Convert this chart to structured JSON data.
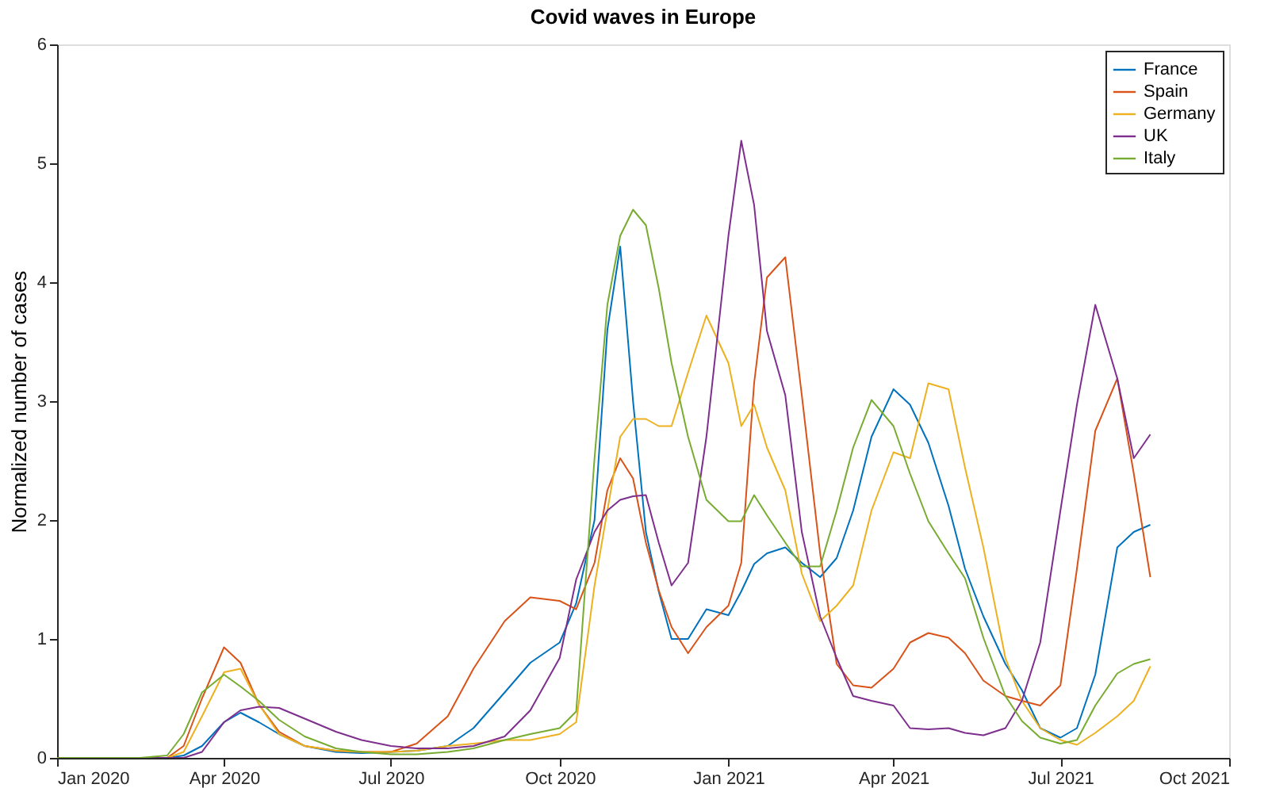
{
  "chart_data": {
    "type": "line",
    "title": "Covid waves in Europe",
    "ylabel": "Normalized number of cases",
    "x": [
      "2020-01-01",
      "2020-02-15",
      "2020-03-01",
      "2020-03-10",
      "2020-03-20",
      "2020-04-01",
      "2020-04-10",
      "2020-04-20",
      "2020-05-01",
      "2020-05-15",
      "2020-06-01",
      "2020-06-15",
      "2020-07-01",
      "2020-07-15",
      "2020-08-01",
      "2020-08-15",
      "2020-09-01",
      "2020-09-15",
      "2020-10-01",
      "2020-10-10",
      "2020-10-20",
      "2020-10-27",
      "2020-11-03",
      "2020-11-10",
      "2020-11-17",
      "2020-11-24",
      "2020-12-01",
      "2020-12-10",
      "2020-12-20",
      "2021-01-01",
      "2021-01-08",
      "2021-01-15",
      "2021-01-22",
      "2021-02-01",
      "2021-02-10",
      "2021-02-20",
      "2021-03-01",
      "2021-03-10",
      "2021-03-20",
      "2021-04-01",
      "2021-04-10",
      "2021-04-20",
      "2021-05-01",
      "2021-05-10",
      "2021-05-20",
      "2021-06-01",
      "2021-06-10",
      "2021-06-20",
      "2021-07-01",
      "2021-07-10",
      "2021-07-20",
      "2021-08-01",
      "2021-08-10",
      "2021-08-19"
    ],
    "series": [
      {
        "name": "France",
        "color": "#0072bd",
        "values": [
          0,
          0,
          0,
          0.02,
          0.1,
          0.3,
          0.38,
          0.3,
          0.2,
          0.1,
          0.05,
          0.04,
          0.05,
          0.06,
          0.1,
          0.25,
          0.55,
          0.8,
          0.97,
          1.3,
          2.0,
          3.6,
          4.3,
          3.0,
          1.9,
          1.4,
          1.0,
          1.0,
          1.25,
          1.2,
          1.4,
          1.63,
          1.72,
          1.77,
          1.64,
          1.52,
          1.68,
          2.08,
          2.7,
          3.1,
          2.97,
          2.65,
          2.12,
          1.59,
          1.19,
          0.79,
          0.57,
          0.25,
          0.17,
          0.25,
          0.7,
          1.77,
          1.9,
          1.96
        ]
      },
      {
        "name": "Spain",
        "color": "#d95319",
        "values": [
          0,
          0,
          0,
          0.1,
          0.5,
          0.93,
          0.8,
          0.45,
          0.22,
          0.1,
          0.06,
          0.05,
          0.05,
          0.12,
          0.35,
          0.75,
          1.15,
          1.35,
          1.32,
          1.25,
          1.64,
          2.25,
          2.52,
          2.35,
          1.81,
          1.41,
          1.1,
          0.88,
          1.1,
          1.28,
          1.64,
          3.15,
          4.04,
          4.21,
          3.05,
          1.72,
          0.79,
          0.61,
          0.59,
          0.75,
          0.97,
          1.05,
          1.01,
          0.88,
          0.65,
          0.52,
          0.48,
          0.44,
          0.61,
          1.59,
          2.75,
          3.19,
          2.39,
          1.52
        ]
      },
      {
        "name": "Germany",
        "color": "#edb120",
        "values": [
          0,
          0,
          0,
          0.05,
          0.35,
          0.72,
          0.75,
          0.45,
          0.2,
          0.1,
          0.06,
          0.05,
          0.05,
          0.06,
          0.1,
          0.12,
          0.15,
          0.15,
          0.2,
          0.3,
          1.45,
          2.08,
          2.7,
          2.85,
          2.85,
          2.79,
          2.79,
          3.24,
          3.72,
          3.32,
          2.79,
          2.97,
          2.61,
          2.25,
          1.55,
          1.15,
          1.28,
          1.45,
          2.08,
          2.57,
          2.52,
          3.15,
          3.1,
          2.44,
          1.77,
          0.84,
          0.48,
          0.25,
          0.15,
          0.11,
          0.21,
          0.35,
          0.48,
          0.77
        ]
      },
      {
        "name": "UK",
        "color": "#7e2f8e",
        "values": [
          0,
          0,
          0,
          0,
          0.05,
          0.3,
          0.4,
          0.43,
          0.42,
          0.33,
          0.22,
          0.15,
          0.1,
          0.08,
          0.08,
          0.1,
          0.18,
          0.4,
          0.84,
          1.5,
          1.9,
          2.08,
          2.17,
          2.2,
          2.21,
          1.81,
          1.45,
          1.64,
          2.7,
          4.39,
          5.19,
          4.65,
          3.59,
          3.05,
          1.9,
          1.19,
          0.84,
          0.52,
          0.48,
          0.44,
          0.25,
          0.24,
          0.25,
          0.21,
          0.19,
          0.25,
          0.48,
          0.97,
          2.08,
          2.97,
          3.81,
          3.19,
          2.52,
          2.72
        ]
      },
      {
        "name": "Italy",
        "color": "#77ac30",
        "values": [
          0,
          0,
          0.02,
          0.2,
          0.55,
          0.7,
          0.6,
          0.48,
          0.32,
          0.18,
          0.08,
          0.05,
          0.03,
          0.03,
          0.05,
          0.08,
          0.15,
          0.2,
          0.25,
          0.39,
          2.52,
          3.81,
          4.39,
          4.61,
          4.48,
          3.95,
          3.32,
          2.7,
          2.17,
          1.99,
          1.99,
          2.21,
          2.04,
          1.81,
          1.61,
          1.61,
          2.08,
          2.61,
          3.01,
          2.79,
          2.39,
          1.99,
          1.72,
          1.51,
          1.01,
          0.52,
          0.31,
          0.17,
          0.12,
          0.15,
          0.44,
          0.71,
          0.79,
          0.83
        ]
      }
    ],
    "xlim": [
      "2020-01-01",
      "2021-10-01"
    ],
    "xticks": [
      {
        "value": "2020-01-01",
        "label": "Jan 2020"
      },
      {
        "value": "2020-04-01",
        "label": "Apr 2020"
      },
      {
        "value": "2020-07-01",
        "label": "Jul 2020"
      },
      {
        "value": "2020-10-01",
        "label": "Oct 2020"
      },
      {
        "value": "2021-01-01",
        "label": "Jan 2021"
      },
      {
        "value": "2021-04-01",
        "label": "Apr 2021"
      },
      {
        "value": "2021-07-01",
        "label": "Jul 2021"
      },
      {
        "value": "2021-10-01",
        "label": "Oct 2021"
      }
    ],
    "ylim": [
      0,
      6
    ],
    "yticks": [
      0,
      1,
      2,
      3,
      4,
      5,
      6
    ],
    "grid": false,
    "legend": "top right",
    "marker": "none",
    "line_style": "solid"
  }
}
